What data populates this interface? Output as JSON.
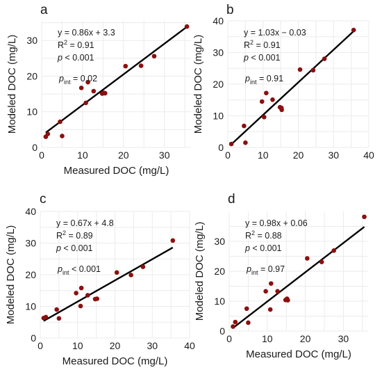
{
  "figure": {
    "panel_labels": [
      "a",
      "b",
      "c",
      "d"
    ]
  },
  "colors": {
    "point": "#8b1010",
    "line": "#000000",
    "grid": "#ebebeb",
    "text": "#1a1a1a"
  },
  "chart_data": [
    {
      "type": "scatter",
      "panel": "a",
      "xlabel": "Measured DOC (mg/L)",
      "ylabel": "Modeled DOC (mg/L)",
      "xlim": [
        0,
        36.5
      ],
      "ylim": [
        0,
        35.5
      ],
      "xticks": [
        0,
        10,
        20,
        30
      ],
      "yticks": [
        0,
        10,
        20,
        30
      ],
      "x": [
        1.0,
        1.5,
        4.5,
        5.0,
        9.7,
        10.8,
        11.3,
        12.7,
        14.8,
        15.2,
        15.5,
        20.5,
        24.3,
        27.5,
        35.5
      ],
      "y": [
        3.0,
        3.8,
        7.2,
        3.2,
        16.7,
        12.5,
        18.3,
        15.8,
        15.1,
        15.3,
        15.2,
        22.8,
        22.9,
        25.6,
        33.9
      ],
      "fit": {
        "slope": 0.86,
        "intercept": 3.3
      },
      "grid": true,
      "annotations": {
        "equation": "y = 0.86x + 3.3",
        "r2_prefix": "R",
        "r2_sup": "2",
        "r2_value": " = 0.91",
        "p_prefix": "p",
        "p_value": " < 0.001",
        "pint_prefix": "p",
        "pint_sub": "int",
        "pint_value": " = 0.02"
      }
    },
    {
      "type": "scatter",
      "panel": "b",
      "xlabel": "",
      "ylabel": "Modeled DOC (mg/L)",
      "xlim": [
        0,
        40
      ],
      "ylim": [
        0,
        40
      ],
      "xticks": [
        0,
        10,
        20,
        30,
        40
      ],
      "yticks": [
        0,
        10,
        20,
        30,
        40
      ],
      "x": [
        1.0,
        4.6,
        5.0,
        9.7,
        10.3,
        10.9,
        12.7,
        14.8,
        15.2,
        15.3,
        20.5,
        24.2,
        27.4,
        35.7
      ],
      "y": [
        1.1,
        6.8,
        1.5,
        14.5,
        9.6,
        17.2,
        15.1,
        12.7,
        12.5,
        11.9,
        24.6,
        24.4,
        28.0,
        37.1
      ],
      "fit": {
        "slope": 1.03,
        "intercept": -0.03
      },
      "grid": true,
      "annotations": {
        "equation": "y = 1.03x − 0.03",
        "r2_prefix": "R",
        "r2_sup": "2",
        "r2_value": " = 0.91",
        "p_prefix": "p",
        "p_value": " < 0.001",
        "pint_prefix": "p",
        "pint_sub": "int",
        "pint_value": " = 0.91"
      }
    },
    {
      "type": "scatter",
      "panel": "c",
      "xlabel": "Measured DOC (mg/L)",
      "ylabel": "Modeled DOC (mg/L)",
      "xlim": [
        0,
        40
      ],
      "ylim": [
        0,
        40
      ],
      "xticks": [
        0,
        10,
        20,
        30,
        40
      ],
      "yticks": [
        0,
        10,
        20,
        30,
        40
      ],
      "x": [
        0.9,
        1.5,
        4.4,
        5.0,
        9.6,
        10.8,
        11.0,
        12.7,
        14.7,
        15.2,
        20.5,
        24.3,
        27.5,
        35.5
      ],
      "y": [
        6.3,
        6.6,
        9.0,
        6.2,
        14.2,
        10.1,
        15.8,
        13.5,
        12.3,
        12.4,
        20.7,
        19.9,
        22.5,
        30.8
      ],
      "fit": {
        "slope": 0.67,
        "intercept": 4.8
      },
      "grid": true,
      "annotations": {
        "equation": "y = 0.67x + 4.8",
        "r2_prefix": "R",
        "r2_sup": "2",
        "r2_value": " = 0.89",
        "p_prefix": "p",
        "p_value": " < 0.001",
        "pint_prefix": "p",
        "pint_sub": "int",
        "pint_value": " < 0.001"
      }
    },
    {
      "type": "scatter",
      "panel": "d",
      "xlabel": "Measured DOC (mg/L)",
      "ylabel": "Modeled DOC (mg/L)",
      "xlim": [
        0,
        36.5
      ],
      "ylim": [
        0,
        40
      ],
      "xticks": [
        0,
        10,
        20,
        30
      ],
      "yticks": [
        0,
        10,
        20,
        30
      ],
      "x": [
        1.0,
        1.6,
        4.6,
        5.0,
        9.6,
        10.8,
        11.0,
        12.7,
        14.8,
        15.2,
        15.4,
        20.5,
        24.3,
        27.5,
        35.5
      ],
      "y": [
        1.5,
        3.0,
        7.5,
        2.8,
        13.3,
        7.2,
        15.9,
        13.3,
        10.4,
        10.8,
        10.3,
        24.3,
        23.1,
        26.9,
        38.2
      ],
      "fit": {
        "slope": 0.98,
        "intercept": 0.06
      },
      "grid": true,
      "annotations": {
        "equation": "y = 0.98x + 0.06",
        "r2_prefix": "R",
        "r2_sup": "2",
        "r2_value": " = 0.88",
        "p_prefix": "p",
        "p_value": " < 0.001",
        "pint_prefix": "p",
        "pint_sub": "int",
        "pint_value": " = 0.97"
      }
    }
  ]
}
